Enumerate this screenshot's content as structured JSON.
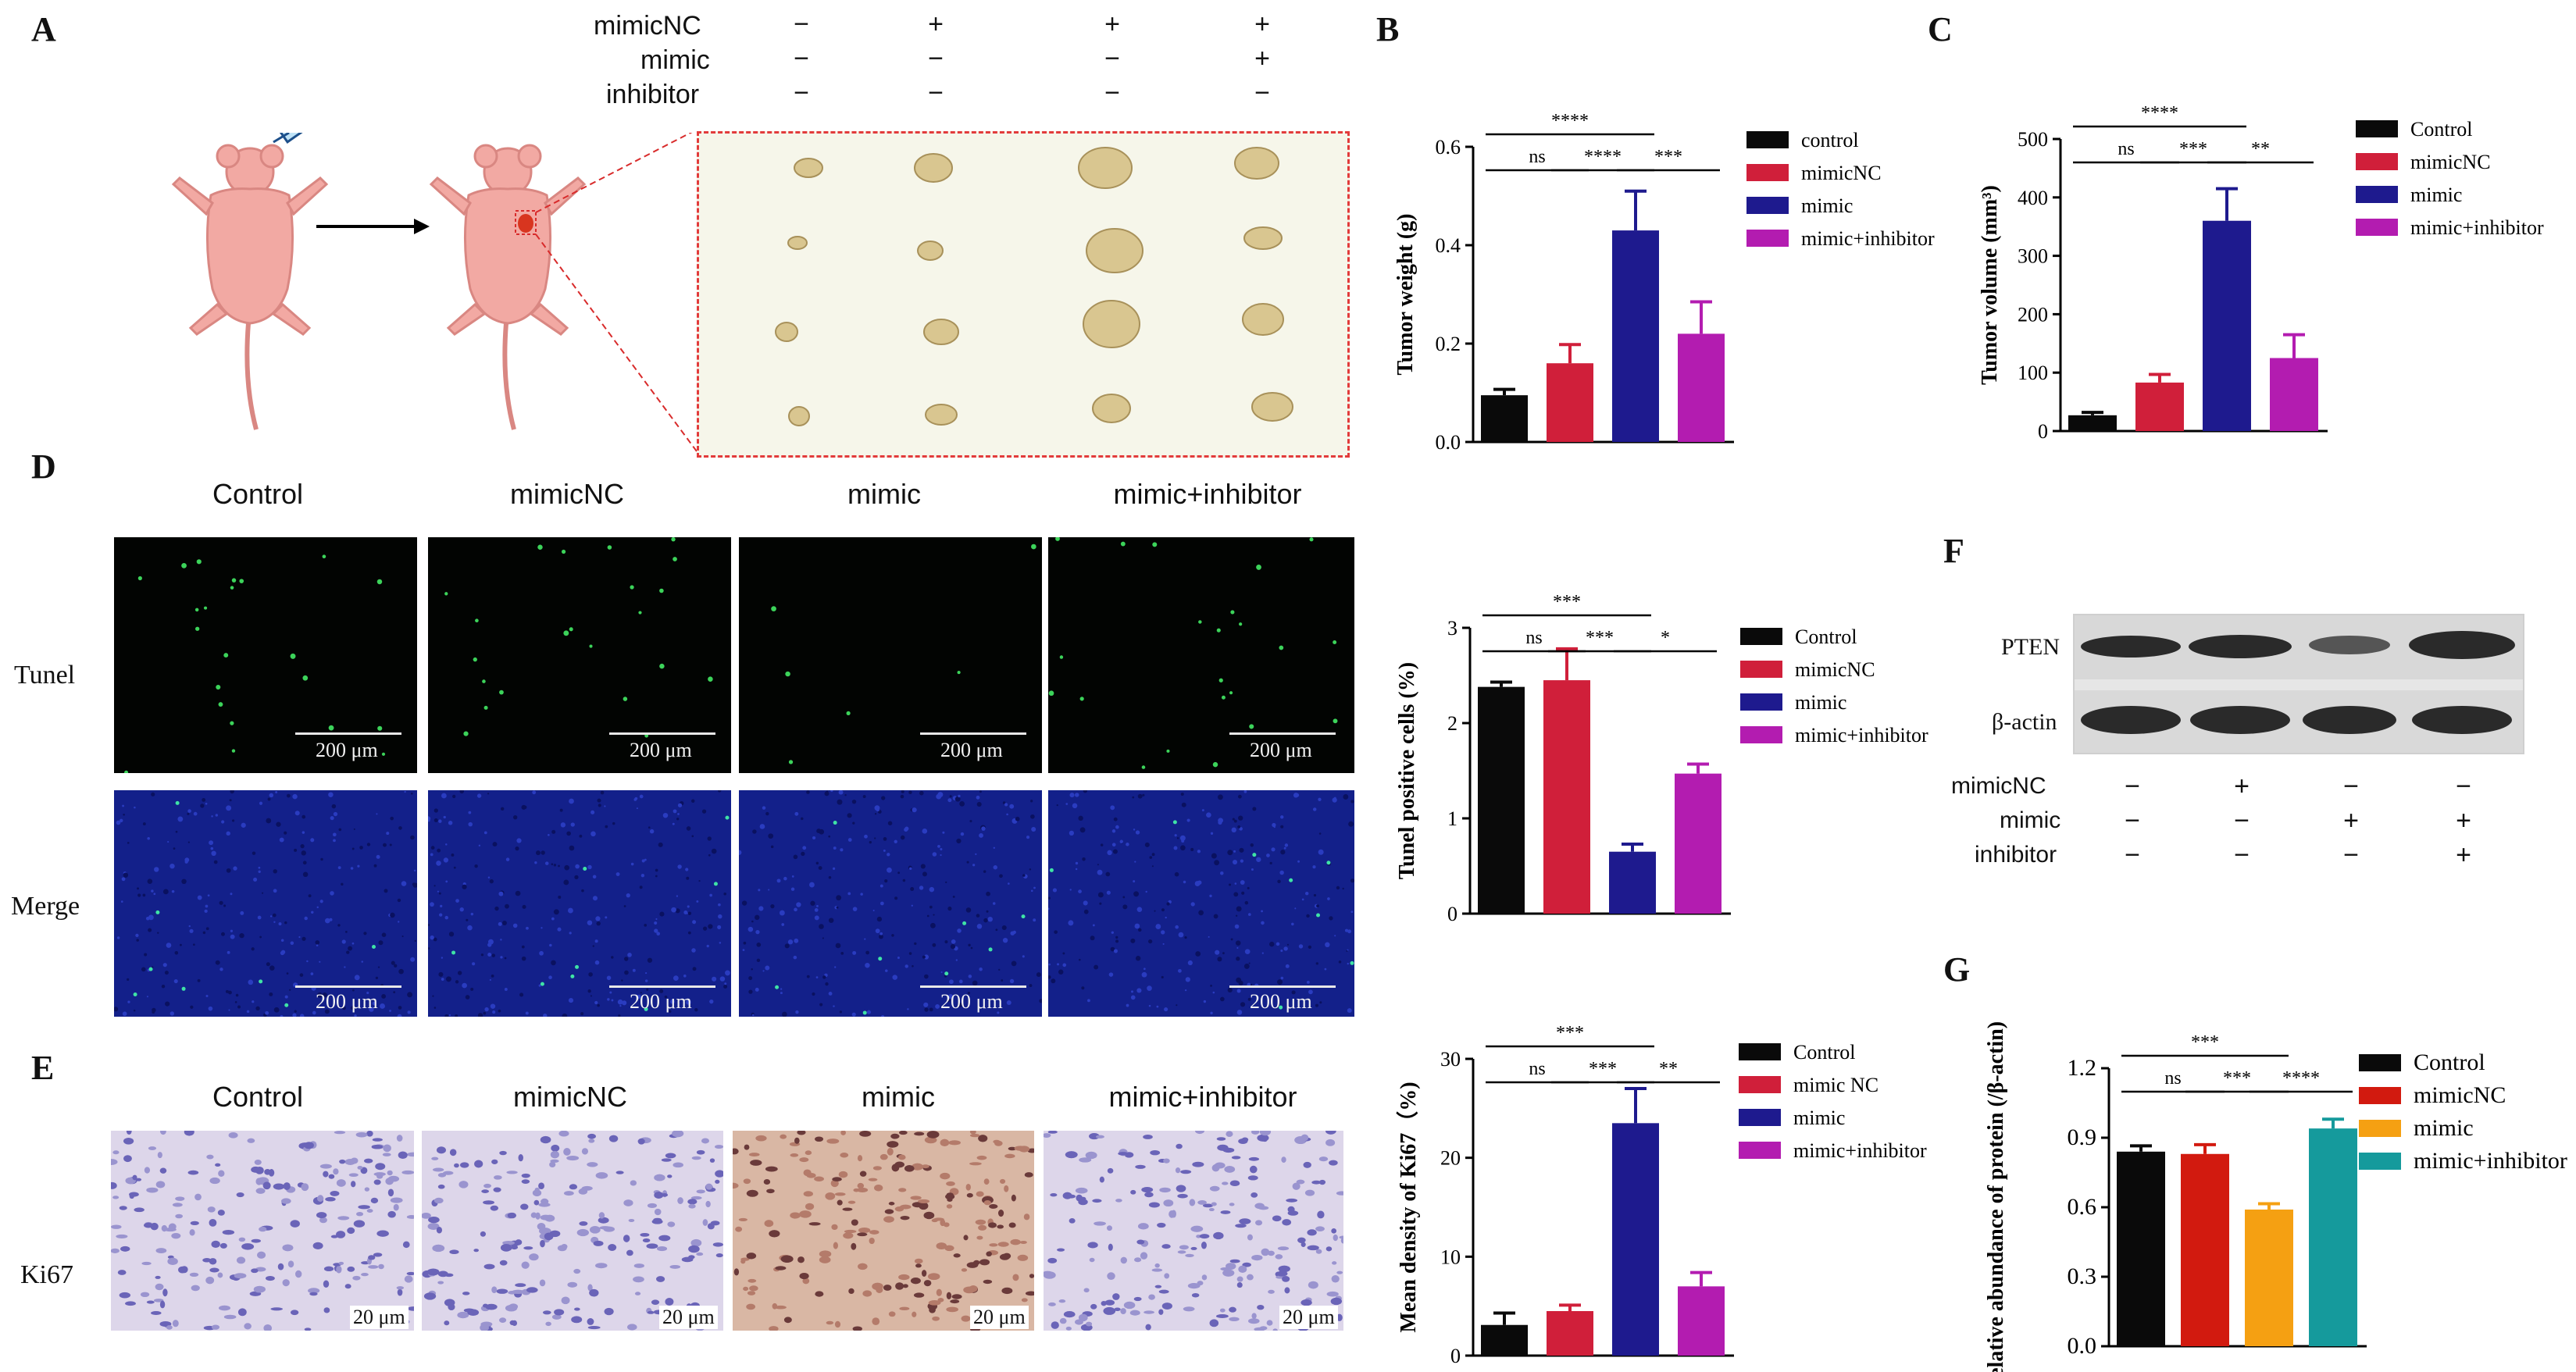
{
  "panels": {
    "A": "A",
    "B": "B",
    "C": "C",
    "D": "D",
    "E": "E",
    "F": "F",
    "G": "G"
  },
  "panelA": {
    "row_labels": [
      "mimicNC",
      "mimic",
      "inhibitor"
    ],
    "conditions": [
      [
        "−",
        "+",
        "+",
        "+"
      ],
      [
        "−",
        "−",
        "−",
        "+"
      ],
      [
        "−",
        "−",
        "−",
        "−"
      ]
    ]
  },
  "panelD": {
    "columns": [
      "Control",
      "mimicNC",
      "mimic",
      "mimic+inhibitor"
    ],
    "rows": [
      "Tunel",
      "Merge"
    ],
    "scale": "200 μm"
  },
  "panelE": {
    "columns": [
      "Control",
      "mimicNC",
      "mimic",
      "mimic+inhibitor"
    ],
    "row": "Ki67",
    "scale": "20 μm"
  },
  "panelF": {
    "bands": [
      "PTEN",
      "β-actin"
    ],
    "row_labels": [
      "mimicNC",
      "mimic",
      "inhibitor"
    ],
    "conditions": [
      [
        "−",
        "+",
        "−",
        "−"
      ],
      [
        "−",
        "−",
        "+",
        "+"
      ],
      [
        "−",
        "−",
        "−",
        "+"
      ]
    ]
  },
  "chart_data": [
    {
      "id": "B",
      "type": "bar",
      "categories": [
        "control",
        "mimicNC",
        "mimic",
        "mimic+inhibitor"
      ],
      "values": [
        0.095,
        0.16,
        0.43,
        0.22
      ],
      "errors": [
        0.012,
        0.038,
        0.08,
        0.065
      ],
      "colors": [
        "#0a0a0a",
        "#d01f3a",
        "#1e1a8e",
        "#b31cb0"
      ],
      "ylabel": "Tumor weight  (g)",
      "ylim": [
        0,
        0.6
      ],
      "yticks": [
        "0.0",
        "0.2",
        "0.4",
        "0.6"
      ],
      "legend": [
        "control",
        "mimicNC",
        "mimic",
        "mimic+inhibitor"
      ],
      "sig": [
        {
          "from": 0,
          "to": 2,
          "label": "****"
        },
        {
          "from": 0,
          "to": 1,
          "label": "ns"
        },
        {
          "from": 1,
          "to": 2,
          "label": "****"
        },
        {
          "from": 2,
          "to": 3,
          "label": "***"
        }
      ]
    },
    {
      "id": "C",
      "type": "bar",
      "categories": [
        "Control",
        "mimicNC",
        "mimic",
        "mimic+inhibitor"
      ],
      "values": [
        27,
        83,
        360,
        125
      ],
      "errors": [
        5,
        14,
        55,
        40
      ],
      "colors": [
        "#0a0a0a",
        "#d01f3a",
        "#1e1a8e",
        "#b31cb0"
      ],
      "ylabel": "Tumor volume (mm³)",
      "ylim": [
        0,
        500
      ],
      "yticks": [
        "0",
        "100",
        "200",
        "300",
        "400",
        "500"
      ],
      "legend": [
        "Control",
        "mimicNC",
        "mimic",
        "mimic+inhibitor"
      ],
      "sig": [
        {
          "from": 0,
          "to": 2,
          "label": "****"
        },
        {
          "from": 0,
          "to": 1,
          "label": "ns"
        },
        {
          "from": 1,
          "to": 2,
          "label": "***"
        },
        {
          "from": 2,
          "to": 3,
          "label": "**"
        }
      ]
    },
    {
      "id": "D",
      "type": "bar",
      "categories": [
        "Control",
        "mimicNC",
        "mimic",
        "mimic+inhibitor"
      ],
      "values": [
        2.38,
        2.45,
        0.65,
        1.47
      ],
      "errors": [
        0.05,
        0.33,
        0.08,
        0.1
      ],
      "colors": [
        "#0a0a0a",
        "#d01f3a",
        "#1e1a8e",
        "#b31cb0"
      ],
      "ylabel": "Tunel positive cells (%)",
      "ylim": [
        0,
        3
      ],
      "yticks": [
        "0",
        "1",
        "2",
        "3"
      ],
      "legend": [
        "Control",
        "mimicNC",
        "mimic",
        "mimic+inhibitor"
      ],
      "sig": [
        {
          "from": 0,
          "to": 2,
          "label": "***"
        },
        {
          "from": 0,
          "to": 1,
          "label": "ns"
        },
        {
          "from": 1,
          "to": 2,
          "label": "***"
        },
        {
          "from": 2,
          "to": 3,
          "label": "*"
        }
      ]
    },
    {
      "id": "E",
      "type": "bar",
      "categories": [
        "Control",
        "mimic NC",
        "mimic",
        "mimic+inhibitor"
      ],
      "values": [
        3.1,
        4.5,
        23.5,
        7.0
      ],
      "errors": [
        1.2,
        0.6,
        3.5,
        1.4
      ],
      "colors": [
        "#0a0a0a",
        "#d01f3a",
        "#1e1a8e",
        "#b31cb0"
      ],
      "ylabel": "Mean density of Ki67（%)",
      "ylim": [
        0,
        30
      ],
      "yticks": [
        "0",
        "10",
        "20",
        "30"
      ],
      "legend": [
        "Control",
        "mimic NC",
        "mimic",
        "mimic+inhibitor"
      ],
      "sig": [
        {
          "from": 0,
          "to": 2,
          "label": "***"
        },
        {
          "from": 0,
          "to": 1,
          "label": "ns"
        },
        {
          "from": 1,
          "to": 2,
          "label": "***"
        },
        {
          "from": 2,
          "to": 3,
          "label": "**"
        }
      ]
    },
    {
      "id": "G",
      "type": "bar",
      "categories": [
        "Control",
        "mimicNC",
        "mimic",
        "mimic+inhibitor"
      ],
      "values": [
        0.84,
        0.83,
        0.59,
        0.94
      ],
      "errors": [
        0.025,
        0.04,
        0.025,
        0.04
      ],
      "colors": [
        "#0a0a0a",
        "#d21a0f",
        "#f5a012",
        "#159a9c"
      ],
      "ylabel": "Relative abundance of  protein (/β-actin)",
      "ylim": [
        0,
        1.2
      ],
      "yticks": [
        "0.0",
        "0.3",
        "0.6",
        "0.9",
        "1.2"
      ],
      "legend": [
        "Control",
        "mimicNC",
        "mimic",
        "mimic+inhibitor"
      ],
      "sig": [
        {
          "from": 0,
          "to": 2,
          "label": "***"
        },
        {
          "from": 0,
          "to": 1,
          "label": "ns"
        },
        {
          "from": 1,
          "to": 2,
          "label": "***"
        },
        {
          "from": 2,
          "to": 3,
          "label": "****"
        }
      ]
    }
  ]
}
